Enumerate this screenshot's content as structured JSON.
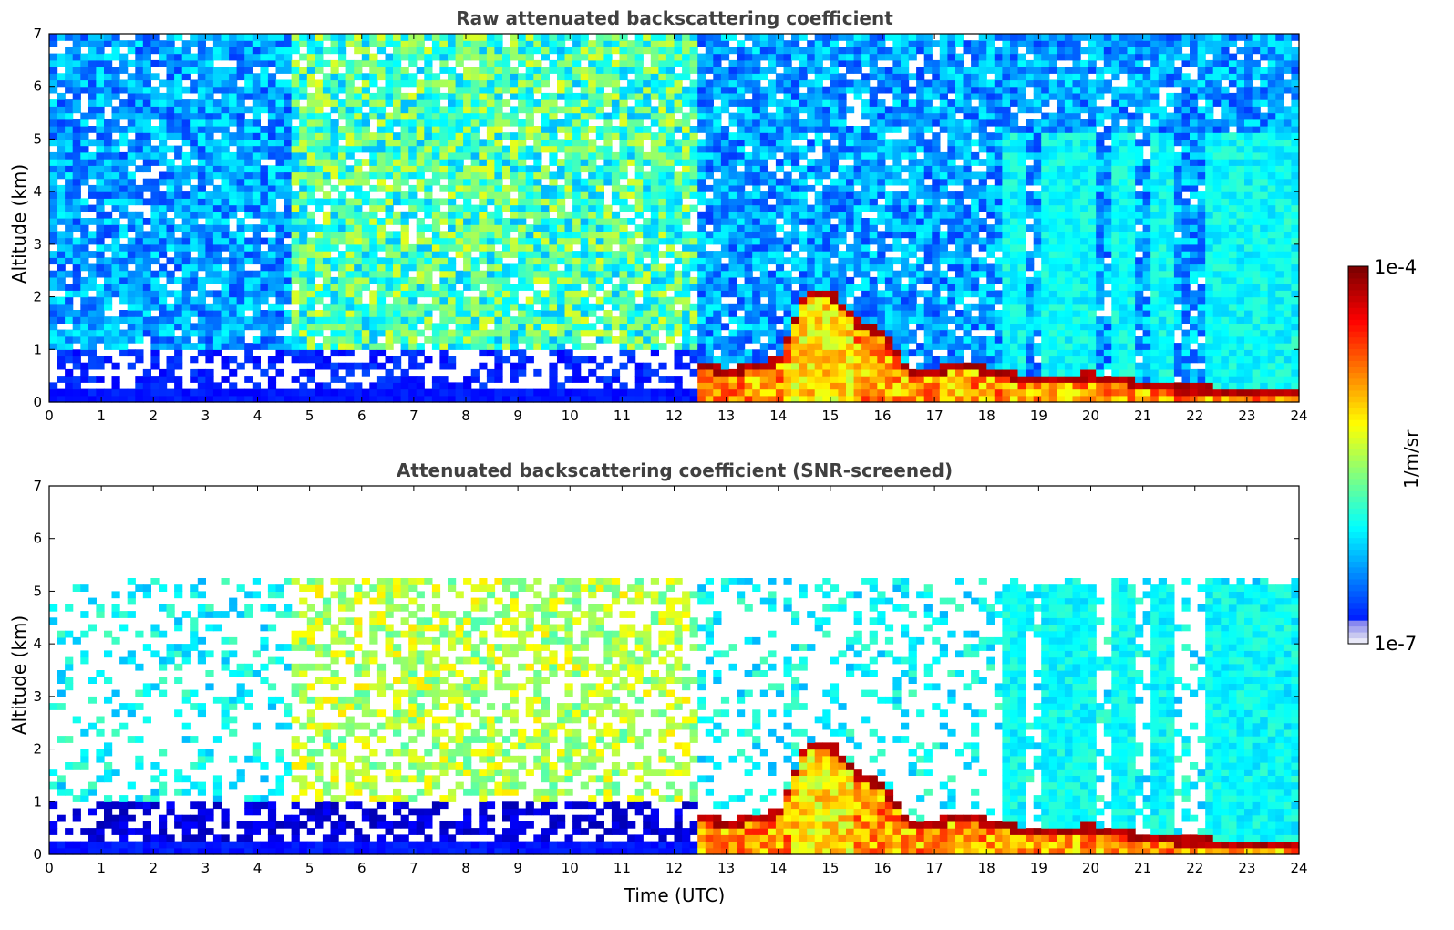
{
  "chart_data": [
    {
      "type": "heatmap",
      "title": "Raw attenuated backscattering coefficient",
      "xlabel": "",
      "ylabel": "Altitude (km)",
      "xlim": [
        0,
        24
      ],
      "ylim": [
        0,
        7
      ],
      "x_ticks": [
        "0",
        "1",
        "2",
        "3",
        "4",
        "5",
        "6",
        "7",
        "8",
        "9",
        "10",
        "11",
        "12",
        "13",
        "14",
        "15",
        "16",
        "17",
        "18",
        "19",
        "20",
        "21",
        "22",
        "23",
        "24"
      ],
      "y_ticks": [
        "0",
        "1",
        "2",
        "3",
        "4",
        "5",
        "6",
        "7"
      ],
      "colormap": "jet",
      "color_scale": "log",
      "color_range": [
        1e-07,
        0.0001
      ],
      "features": {
        "surface_layer_top_km": 0.2,
        "cloud_base_km": [
          [
            12.4,
            0.75
          ],
          [
            13.0,
            0.55
          ],
          [
            13.5,
            0.7
          ],
          [
            14.0,
            0.75
          ],
          [
            14.5,
            2.0
          ],
          [
            15.0,
            2.1
          ],
          [
            15.5,
            1.5
          ],
          [
            16.0,
            1.3
          ],
          [
            16.5,
            0.6
          ],
          [
            17.0,
            0.6
          ],
          [
            17.5,
            0.7
          ],
          [
            18.0,
            0.6
          ],
          [
            18.5,
            0.5
          ],
          [
            19.0,
            0.4
          ],
          [
            20.0,
            0.5
          ],
          [
            20.5,
            0.45
          ],
          [
            21.0,
            0.3
          ],
          [
            22.0,
            0.25
          ],
          [
            23.0,
            0.2
          ],
          [
            24.0,
            0.2
          ]
        ],
        "elevated_layer_km": [
          [
            4.6,
            1.5
          ],
          [
            11.5,
            3.0
          ]
        ],
        "rain_columns_utc": [
          18.5,
          19.3,
          19.8,
          20.6,
          21.4,
          22.4,
          22.9,
          23.4
        ]
      }
    },
    {
      "type": "heatmap",
      "title": "Attenuated backscattering coefficient (SNR-screened)",
      "xlabel": "Time (UTC)",
      "ylabel": "Altitude (km)",
      "xlim": [
        0,
        24
      ],
      "ylim": [
        0,
        7
      ],
      "x_ticks": [
        "0",
        "1",
        "2",
        "3",
        "4",
        "5",
        "6",
        "7",
        "8",
        "9",
        "10",
        "11",
        "12",
        "13",
        "14",
        "15",
        "16",
        "17",
        "18",
        "19",
        "20",
        "21",
        "22",
        "23",
        "24"
      ],
      "y_ticks": [
        "0",
        "1",
        "2",
        "3",
        "4",
        "5",
        "6",
        "7"
      ],
      "colormap": "jet",
      "color_scale": "log",
      "color_range": [
        1e-07,
        0.0001
      ],
      "features": {
        "signal_top_km": 5.0,
        "precipitation_top_km": 5.1
      }
    }
  ],
  "colorbar": {
    "label": "1/m/sr",
    "max_label": "1e-4",
    "min_label": "1e-7",
    "colormap": "jet"
  },
  "colors": {
    "axis": "#000000",
    "title": "#404040",
    "background": "#ffffff"
  }
}
